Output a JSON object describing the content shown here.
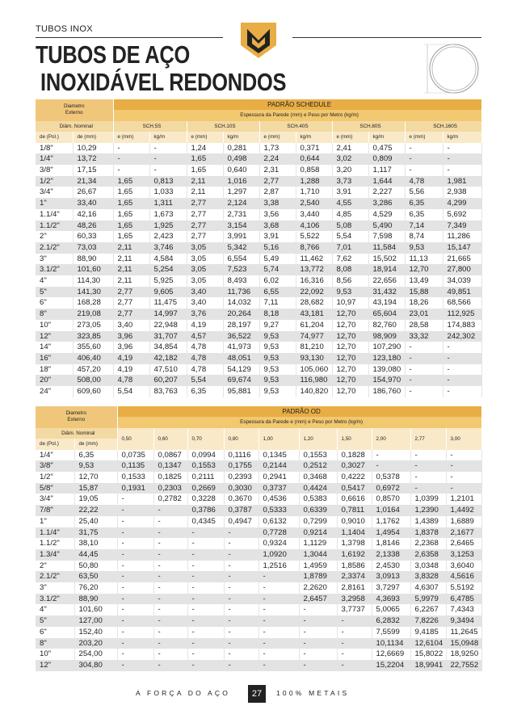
{
  "header": {
    "section": "TUBOS INOX",
    "title_line1": "TUBOS DE AÇO",
    "title_line2": "INOXIDÁVEL REDONDOS"
  },
  "schedule_table": {
    "diameter_label": "Diametro Externo",
    "title": "PADRÃO SCHEDULE",
    "subtitle": "Espessura da Parede (mm) e Peso por Metro (kg/m)",
    "nominal_label": "Diâm. Nominal",
    "col_pol": "de (Pol.)",
    "col_mm": "de (mm)",
    "groups": [
      "SCH.5S",
      "SCH.10S",
      "SCH.40S",
      "SCH.80S",
      "SCH.160S"
    ],
    "sub_cols": [
      "e (mm)",
      "kg/m"
    ],
    "rows": [
      [
        "1/8\"",
        "10,29",
        "-",
        "-",
        "1,24",
        "0,281",
        "1,73",
        "0,371",
        "2,41",
        "0,475",
        "-",
        "-"
      ],
      [
        "1/4\"",
        "13,72",
        "-",
        "-",
        "1,65",
        "0,498",
        "2,24",
        "0,644",
        "3,02",
        "0,809",
        "-",
        "-"
      ],
      [
        "3/8\"",
        "17,15",
        "-",
        "-",
        "1,65",
        "0,640",
        "2,31",
        "0,858",
        "3,20",
        "1,117",
        "-",
        "-"
      ],
      [
        "1/2\"",
        "21,34",
        "1,65",
        "0,813",
        "2,11",
        "1,016",
        "2,77",
        "1,288",
        "3,73",
        "1,644",
        "4,78",
        "1,981"
      ],
      [
        "3/4\"",
        "26,67",
        "1,65",
        "1,033",
        "2,11",
        "1,297",
        "2,87",
        "1,710",
        "3,91",
        "2,227",
        "5,56",
        "2,938"
      ],
      [
        "1\"",
        "33,40",
        "1,65",
        "1,311",
        "2,77",
        "2,124",
        "3,38",
        "2,540",
        "4,55",
        "3,286",
        "6,35",
        "4,299"
      ],
      [
        "1.1/4\"",
        "42,16",
        "1,65",
        "1,673",
        "2,77",
        "2,731",
        "3,56",
        "3,440",
        "4,85",
        "4,529",
        "6,35",
        "5,692"
      ],
      [
        "1.1/2\"",
        "48,26",
        "1,65",
        "1,925",
        "2,77",
        "3,154",
        "3,68",
        "4,106",
        "5,08",
        "5,490",
        "7,14",
        "7,349"
      ],
      [
        "2\"",
        "60,33",
        "1,65",
        "2,423",
        "2,77",
        "3,991",
        "3,91",
        "5,522",
        "5,54",
        "7,598",
        "8,74",
        "11,286"
      ],
      [
        "2.1/2\"",
        "73,03",
        "2,11",
        "3,746",
        "3,05",
        "5,342",
        "5,16",
        "8,766",
        "7,01",
        "11,584",
        "9,53",
        "15,147"
      ],
      [
        "3\"",
        "88,90",
        "2,11",
        "4,584",
        "3,05",
        "6,554",
        "5,49",
        "11,462",
        "7,62",
        "15,502",
        "11,13",
        "21,665"
      ],
      [
        "3.1/2\"",
        "101,60",
        "2,11",
        "5,254",
        "3,05",
        "7,523",
        "5,74",
        "13,772",
        "8,08",
        "18,914",
        "12,70",
        "27,800"
      ],
      [
        "4\"",
        "114,30",
        "2,11",
        "5,925",
        "3,05",
        "8,493",
        "6,02",
        "16,316",
        "8,56",
        "22,656",
        "13,49",
        "34,039"
      ],
      [
        "5\"",
        "141,30",
        "2,77",
        "9,605",
        "3,40",
        "11,736",
        "6,55",
        "22,092",
        "9,53",
        "31,432",
        "15,88",
        "49,851"
      ],
      [
        "6\"",
        "168,28",
        "2,77",
        "11,475",
        "3,40",
        "14,032",
        "7,11",
        "28,682",
        "10,97",
        "43,194",
        "18,26",
        "68,566"
      ],
      [
        "8\"",
        "219,08",
        "2,77",
        "14,997",
        "3,76",
        "20,264",
        "8,18",
        "43,181",
        "12,70",
        "65,604",
        "23,01",
        "112,925"
      ],
      [
        "10\"",
        "273,05",
        "3,40",
        "22,948",
        "4,19",
        "28,197",
        "9,27",
        "61,204",
        "12,70",
        "82,760",
        "28,58",
        "174,883"
      ],
      [
        "12\"",
        "323,85",
        "3,96",
        "31,707",
        "4,57",
        "36,522",
        "9,53",
        "74,977",
        "12,70",
        "98,909",
        "33,32",
        "242,302"
      ],
      [
        "14\"",
        "355,60",
        "3,96",
        "34,854",
        "4,78",
        "41,973",
        "9,53",
        "81,210",
        "12,70",
        "107,290",
        "-",
        "-"
      ],
      [
        "16\"",
        "406,40",
        "4,19",
        "42,182",
        "4,78",
        "48,051",
        "9,53",
        "93,130",
        "12,70",
        "123,180",
        "-",
        "-"
      ],
      [
        "18\"",
        "457,20",
        "4,19",
        "47,510",
        "4,78",
        "54,129",
        "9,53",
        "105,060",
        "12,70",
        "139,080",
        "-",
        "-"
      ],
      [
        "20\"",
        "508,00",
        "4,78",
        "60,207",
        "5,54",
        "69,674",
        "9,53",
        "116,980",
        "12,70",
        "154,970",
        "-",
        "-"
      ],
      [
        "24\"",
        "609,60",
        "5,54",
        "83,763",
        "6,35",
        "95,881",
        "9,53",
        "140,820",
        "12,70",
        "186,760",
        "-",
        "-"
      ]
    ]
  },
  "od_table": {
    "diameter_label": "Diametro Externo",
    "title": "PADRÃO OD",
    "subtitle": "Espessura da Parede e (mm) e Peso por Metro (kg/m)",
    "nominal_label": "Diâm. Nominal",
    "col_pol": "de (Pol.)",
    "col_mm": "de (mm)",
    "thicknesses": [
      "0,50",
      "0,60",
      "0,70",
      "0,80",
      "1,00",
      "1,20",
      "1,50",
      "2,00",
      "2,77",
      "3,00"
    ],
    "rows": [
      [
        "1/4\"",
        "6,35",
        "0,0735",
        "0,0867",
        "0,0994",
        "0,1116",
        "0,1345",
        "0,1553",
        "0,1828",
        "-",
        "-",
        "-"
      ],
      [
        "3/8\"",
        "9,53",
        "0,1135",
        "0,1347",
        "0,1553",
        "0,1755",
        "0,2144",
        "0,2512",
        "0,3027",
        "-",
        "-",
        "-"
      ],
      [
        "1/2\"",
        "12,70",
        "0,1533",
        "0,1825",
        "0,2111",
        "0,2393",
        "0,2941",
        "0,3468",
        "0,4222",
        "0,5378",
        "-",
        "-"
      ],
      [
        "5/8\"",
        "15,87",
        "0,1931",
        "0,2303",
        "0,2669",
        "0,3030",
        "0,3737",
        "0,4424",
        "0,5417",
        "0,6972",
        "-",
        "-"
      ],
      [
        "3/4\"",
        "19,05",
        "-",
        "0,2782",
        "0,3228",
        "0,3670",
        "0,4536",
        "0,5383",
        "0,6616",
        "0,8570",
        "1,0399",
        "1,2101"
      ],
      [
        "7/8\"",
        "22,22",
        "-",
        "-",
        "0,3786",
        "0,3787",
        "0,5333",
        "0,6339",
        "0,7811",
        "1,0164",
        "1,2390",
        "1,4492"
      ],
      [
        "1\"",
        "25,40",
        "-",
        "-",
        "0,4345",
        "0,4947",
        "0,6132",
        "0,7299",
        "0,9010",
        "1,1762",
        "1,4389",
        "1,6889"
      ],
      [
        "1.1/4\"",
        "31,75",
        "-",
        "-",
        "-",
        "-",
        "0,7728",
        "0,9214",
        "1,1404",
        "1,4954",
        "1,8378",
        "2,1677"
      ],
      [
        "1.1/2\"",
        "38,10",
        "-",
        "-",
        "-",
        "-",
        "0,9324",
        "1,1129",
        "1,3798",
        "1,8146",
        "2,2368",
        "2,6465"
      ],
      [
        "1.3/4\"",
        "44,45",
        "-",
        "-",
        "-",
        "-",
        "1,0920",
        "1,3044",
        "1,6192",
        "2,1338",
        "2,6358",
        "3,1253"
      ],
      [
        "2\"",
        "50,80",
        "-",
        "-",
        "-",
        "-",
        "1,2516",
        "1,4959",
        "1,8586",
        "2,4530",
        "3,0348",
        "3,6040"
      ],
      [
        "2.1/2\"",
        "63,50",
        "-",
        "-",
        "-",
        "-",
        "-",
        "1,8789",
        "2,3374",
        "3,0913",
        "3,8328",
        "4,5616"
      ],
      [
        "3\"",
        "76,20",
        "-",
        "-",
        "-",
        "-",
        "-",
        "2,2620",
        "2,8161",
        "3,7297",
        "4,6307",
        "5,5192"
      ],
      [
        "3.1/2\"",
        "88,90",
        "-",
        "-",
        "-",
        "-",
        "-",
        "2,6457",
        "3,2958",
        "4,3693",
        "5,9979",
        "6,4785"
      ],
      [
        "4\"",
        "101,60",
        "-",
        "-",
        "-",
        "-",
        "-",
        "-",
        "3,7737",
        "5,0065",
        "6,2267",
        "7,4343"
      ],
      [
        "5\"",
        "127,00",
        "-",
        "-",
        "-",
        "-",
        "-",
        "-",
        "-",
        "6,2832",
        "7,8226",
        "9,3494"
      ],
      [
        "6\"",
        "152,40",
        "-",
        "-",
        "-",
        "-",
        "-",
        "-",
        "-",
        "7,5599",
        "9,4185",
        "11,2645"
      ],
      [
        "8\"",
        "203,20",
        "-",
        "-",
        "-",
        "-",
        "-",
        "-",
        "-",
        "10,1134",
        "12,6104",
        "15,0948"
      ],
      [
        "10\"",
        "254,00",
        "-",
        "-",
        "-",
        "-",
        "-",
        "-",
        "-",
        "12,6669",
        "15,8022",
        "18,9250"
      ],
      [
        "12\"",
        "304,80",
        "-",
        "-",
        "-",
        "-",
        "-",
        "-",
        "-",
        "15,2204",
        "18,9941",
        "22,7552"
      ]
    ]
  },
  "footer": {
    "left": "A FORÇA DO AÇO",
    "page": "27",
    "right": "100% METAIS"
  }
}
